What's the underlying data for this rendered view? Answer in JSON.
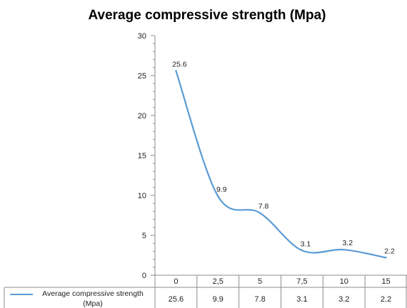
{
  "chart_data": {
    "type": "line",
    "title": "Average compressive strength (Mpa)",
    "categories": [
      "0",
      "2,5",
      "5",
      "7,5",
      "10",
      "15"
    ],
    "series": [
      {
        "name": "Average compressive strength (Mpa)",
        "values": [
          25.6,
          9.9,
          7.8,
          3.1,
          3.2,
          2.2
        ],
        "data_labels": [
          "25.6",
          "9.9",
          "7.8",
          "3.1",
          "3.2",
          "2.2"
        ],
        "table_values": [
          "25.6",
          "9.9",
          "7.8",
          "3.1",
          "3.2",
          "2.2"
        ]
      }
    ],
    "ylim": [
      0,
      30
    ],
    "y_ticks": [
      0,
      5,
      10,
      15,
      20,
      25,
      30
    ],
    "y_tick_labels": [
      "0",
      "5",
      "10",
      "15",
      "20",
      "25",
      "30"
    ],
    "legend": "data table below chart",
    "grid": false,
    "line_color": "#5b9bd5",
    "axis_color": "#8c8c8c"
  }
}
